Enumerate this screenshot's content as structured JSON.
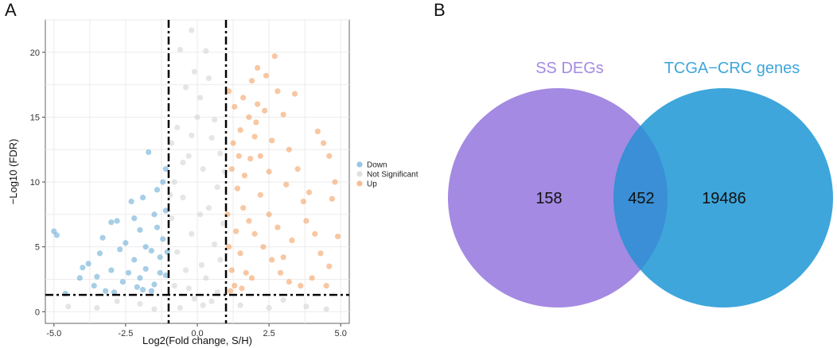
{
  "panels": {
    "a": "A",
    "b": "B"
  },
  "chart_data": [
    {
      "type": "scatter",
      "title": "",
      "xlabel": "Log2(Fold change, S/H)",
      "ylabel": "−Log10 (FDR)",
      "xlim": [
        -5.3,
        5.3
      ],
      "ylim": [
        -0.9,
        22.5
      ],
      "xticks": [
        -5.0,
        -2.5,
        0.0,
        2.5,
        5.0
      ],
      "xtick_labels": [
        "-5.0",
        "-2.5",
        "0.0",
        "2.5",
        "5.0"
      ],
      "yticks": [
        0,
        5,
        10,
        15,
        20
      ],
      "ytick_labels": [
        "0",
        "5",
        "10",
        "15",
        "20"
      ],
      "grid": true,
      "thresholds": {
        "log2fc": [
          -1,
          1
        ],
        "neglog10_fdr": 1.3
      },
      "legend_position": "right",
      "series": [
        {
          "name": "Down",
          "color": "#6aaed6",
          "points": [
            [
              -5.0,
              6.2
            ],
            [
              -4.9,
              5.9
            ],
            [
              -4.6,
              1.4
            ],
            [
              -4.1,
              2.6
            ],
            [
              -4.0,
              3.4
            ],
            [
              -3.8,
              3.7
            ],
            [
              -3.6,
              2.0
            ],
            [
              -3.4,
              4.5
            ],
            [
              -3.3,
              5.7
            ],
            [
              -3.2,
              1.6
            ],
            [
              -3.0,
              6.9
            ],
            [
              -3.0,
              3.2
            ],
            [
              -2.8,
              7.0
            ],
            [
              -2.7,
              4.8
            ],
            [
              -2.6,
              2.3
            ],
            [
              -2.5,
              5.3
            ],
            [
              -2.4,
              3.0
            ],
            [
              -2.3,
              8.5
            ],
            [
              -2.2,
              4.0
            ],
            [
              -2.1,
              1.9
            ],
            [
              -2.0,
              6.3
            ],
            [
              -2.0,
              2.6
            ],
            [
              -1.9,
              8.8
            ],
            [
              -1.8,
              5.0
            ],
            [
              -1.8,
              3.3
            ],
            [
              -1.7,
              12.3
            ],
            [
              -1.6,
              4.7
            ],
            [
              -1.5,
              7.5
            ],
            [
              -1.5,
              2.1
            ],
            [
              -1.4,
              9.4
            ],
            [
              -1.4,
              6.5
            ],
            [
              -1.3,
              4.2
            ],
            [
              -1.3,
              3.0
            ],
            [
              -1.2,
              10.0
            ],
            [
              -1.2,
              5.6
            ],
            [
              -1.1,
              11.0
            ],
            [
              -1.1,
              7.8
            ],
            [
              -1.1,
              2.8
            ],
            [
              -1.05,
              4.6
            ],
            [
              -1.6,
              1.6
            ],
            [
              -2.9,
              1.5
            ],
            [
              -3.5,
              2.7
            ],
            [
              -2.2,
              7.2
            ],
            [
              -1.9,
              1.7
            ]
          ]
        },
        {
          "name": "Not Significant",
          "color": "#d3d3d3",
          "points": [
            [
              -0.6,
              20.2
            ],
            [
              -0.2,
              21.7
            ],
            [
              0.3,
              20.1
            ],
            [
              -0.4,
              17.3
            ],
            [
              0.1,
              16.5
            ],
            [
              -0.7,
              14.2
            ],
            [
              0.5,
              13.4
            ],
            [
              -0.3,
              12.0
            ],
            [
              0.2,
              11.0
            ],
            [
              -0.8,
              10.0
            ],
            [
              0.7,
              9.6
            ],
            [
              -0.5,
              8.8
            ],
            [
              0.4,
              8.0
            ],
            [
              -0.9,
              7.2
            ],
            [
              0.9,
              6.8
            ],
            [
              -0.2,
              6.0
            ],
            [
              0.6,
              5.2
            ],
            [
              -0.7,
              4.6
            ],
            [
              0.8,
              4.0
            ],
            [
              -0.4,
              3.2
            ],
            [
              0.3,
              2.6
            ],
            [
              -0.8,
              2.0
            ],
            [
              0.7,
              1.5
            ],
            [
              -0.1,
              1.0
            ],
            [
              0.2,
              0.5
            ],
            [
              -0.6,
              0.3
            ],
            [
              0.5,
              0.8
            ],
            [
              -0.3,
              1.8
            ],
            [
              0.0,
              15.0
            ],
            [
              -0.1,
              18.5
            ],
            [
              0.4,
              18.0
            ],
            [
              -0.5,
              11.5
            ],
            [
              0.8,
              12.2
            ],
            [
              -0.9,
              13.0
            ],
            [
              0.6,
              14.8
            ],
            [
              -3.5,
              0.3
            ],
            [
              -4.5,
              0.4
            ],
            [
              -2.0,
              0.6
            ],
            [
              -1.5,
              0.2
            ],
            [
              1.5,
              0.5
            ],
            [
              2.5,
              0.3
            ],
            [
              3.8,
              0.4
            ],
            [
              4.5,
              0.2
            ],
            [
              3.0,
              0.9
            ],
            [
              -2.8,
              0.8
            ],
            [
              0.95,
              10.8
            ],
            [
              -0.95,
              9.0
            ],
            [
              0.1,
              7.5
            ],
            [
              -0.2,
              13.6
            ],
            [
              0.15,
              3.6
            ]
          ]
        },
        {
          "name": "Up",
          "color": "#f4a264",
          "points": [
            [
              1.1,
              17.0
            ],
            [
              1.3,
              15.8
            ],
            [
              1.5,
              14.0
            ],
            [
              1.6,
              16.5
            ],
            [
              1.8,
              15.0
            ],
            [
              2.0,
              13.5
            ],
            [
              2.1,
              16.0
            ],
            [
              2.2,
              12.0
            ],
            [
              2.4,
              18.2
            ],
            [
              2.5,
              10.8
            ],
            [
              2.7,
              19.7
            ],
            [
              2.8,
              17.0
            ],
            [
              3.0,
              15.2
            ],
            [
              3.2,
              12.5
            ],
            [
              3.4,
              16.8
            ],
            [
              3.7,
              8.5
            ],
            [
              4.2,
              13.9
            ],
            [
              4.4,
              13.0
            ],
            [
              4.6,
              12.0
            ],
            [
              4.8,
              10.0
            ],
            [
              4.9,
              5.8
            ],
            [
              4.7,
              8.7
            ],
            [
              1.2,
              11.0
            ],
            [
              1.4,
              9.5
            ],
            [
              1.6,
              8.0
            ],
            [
              1.8,
              7.0
            ],
            [
              2.0,
              6.0
            ],
            [
              2.3,
              5.0
            ],
            [
              2.6,
              4.0
            ],
            [
              2.9,
              3.0
            ],
            [
              3.2,
              2.3
            ],
            [
              3.6,
              2.0
            ],
            [
              4.0,
              2.6
            ],
            [
              4.5,
              2.0
            ],
            [
              1.1,
              5.0
            ],
            [
              1.2,
              3.2
            ],
            [
              1.3,
              2.0
            ],
            [
              1.5,
              4.5
            ],
            [
              1.7,
              3.0
            ],
            [
              1.9,
              2.6
            ],
            [
              2.2,
              9.0
            ],
            [
              2.5,
              7.5
            ],
            [
              2.8,
              6.5
            ],
            [
              3.1,
              9.8
            ],
            [
              3.3,
              5.5
            ],
            [
              3.5,
              11.0
            ],
            [
              3.8,
              7.0
            ],
            [
              4.1,
              6.0
            ],
            [
              4.3,
              4.5
            ],
            [
              1.05,
              7.5
            ],
            [
              1.25,
              13.0
            ],
            [
              1.45,
              12.0
            ],
            [
              1.65,
              10.5
            ],
            [
              1.85,
              11.8
            ],
            [
              2.05,
              14.6
            ],
            [
              2.35,
              15.5
            ],
            [
              2.1,
              18.8
            ],
            [
              3.0,
              4.2
            ],
            [
              1.15,
              1.6
            ],
            [
              1.35,
              6.2
            ],
            [
              1.55,
              1.8
            ],
            [
              4.6,
              3.5
            ],
            [
              1.9,
              17.8
            ],
            [
              2.6,
              13.2
            ],
            [
              3.9,
              9.2
            ]
          ]
        }
      ]
    },
    {
      "type": "venn",
      "sets": [
        {
          "name": "SS DEGs",
          "only": 158,
          "color": "#a48ae2"
        },
        {
          "name": "TCGA−CRC genes",
          "only": 19486,
          "color": "#3ea6db"
        }
      ],
      "intersection": 452,
      "intersection_color": "#3a8fd6"
    }
  ]
}
